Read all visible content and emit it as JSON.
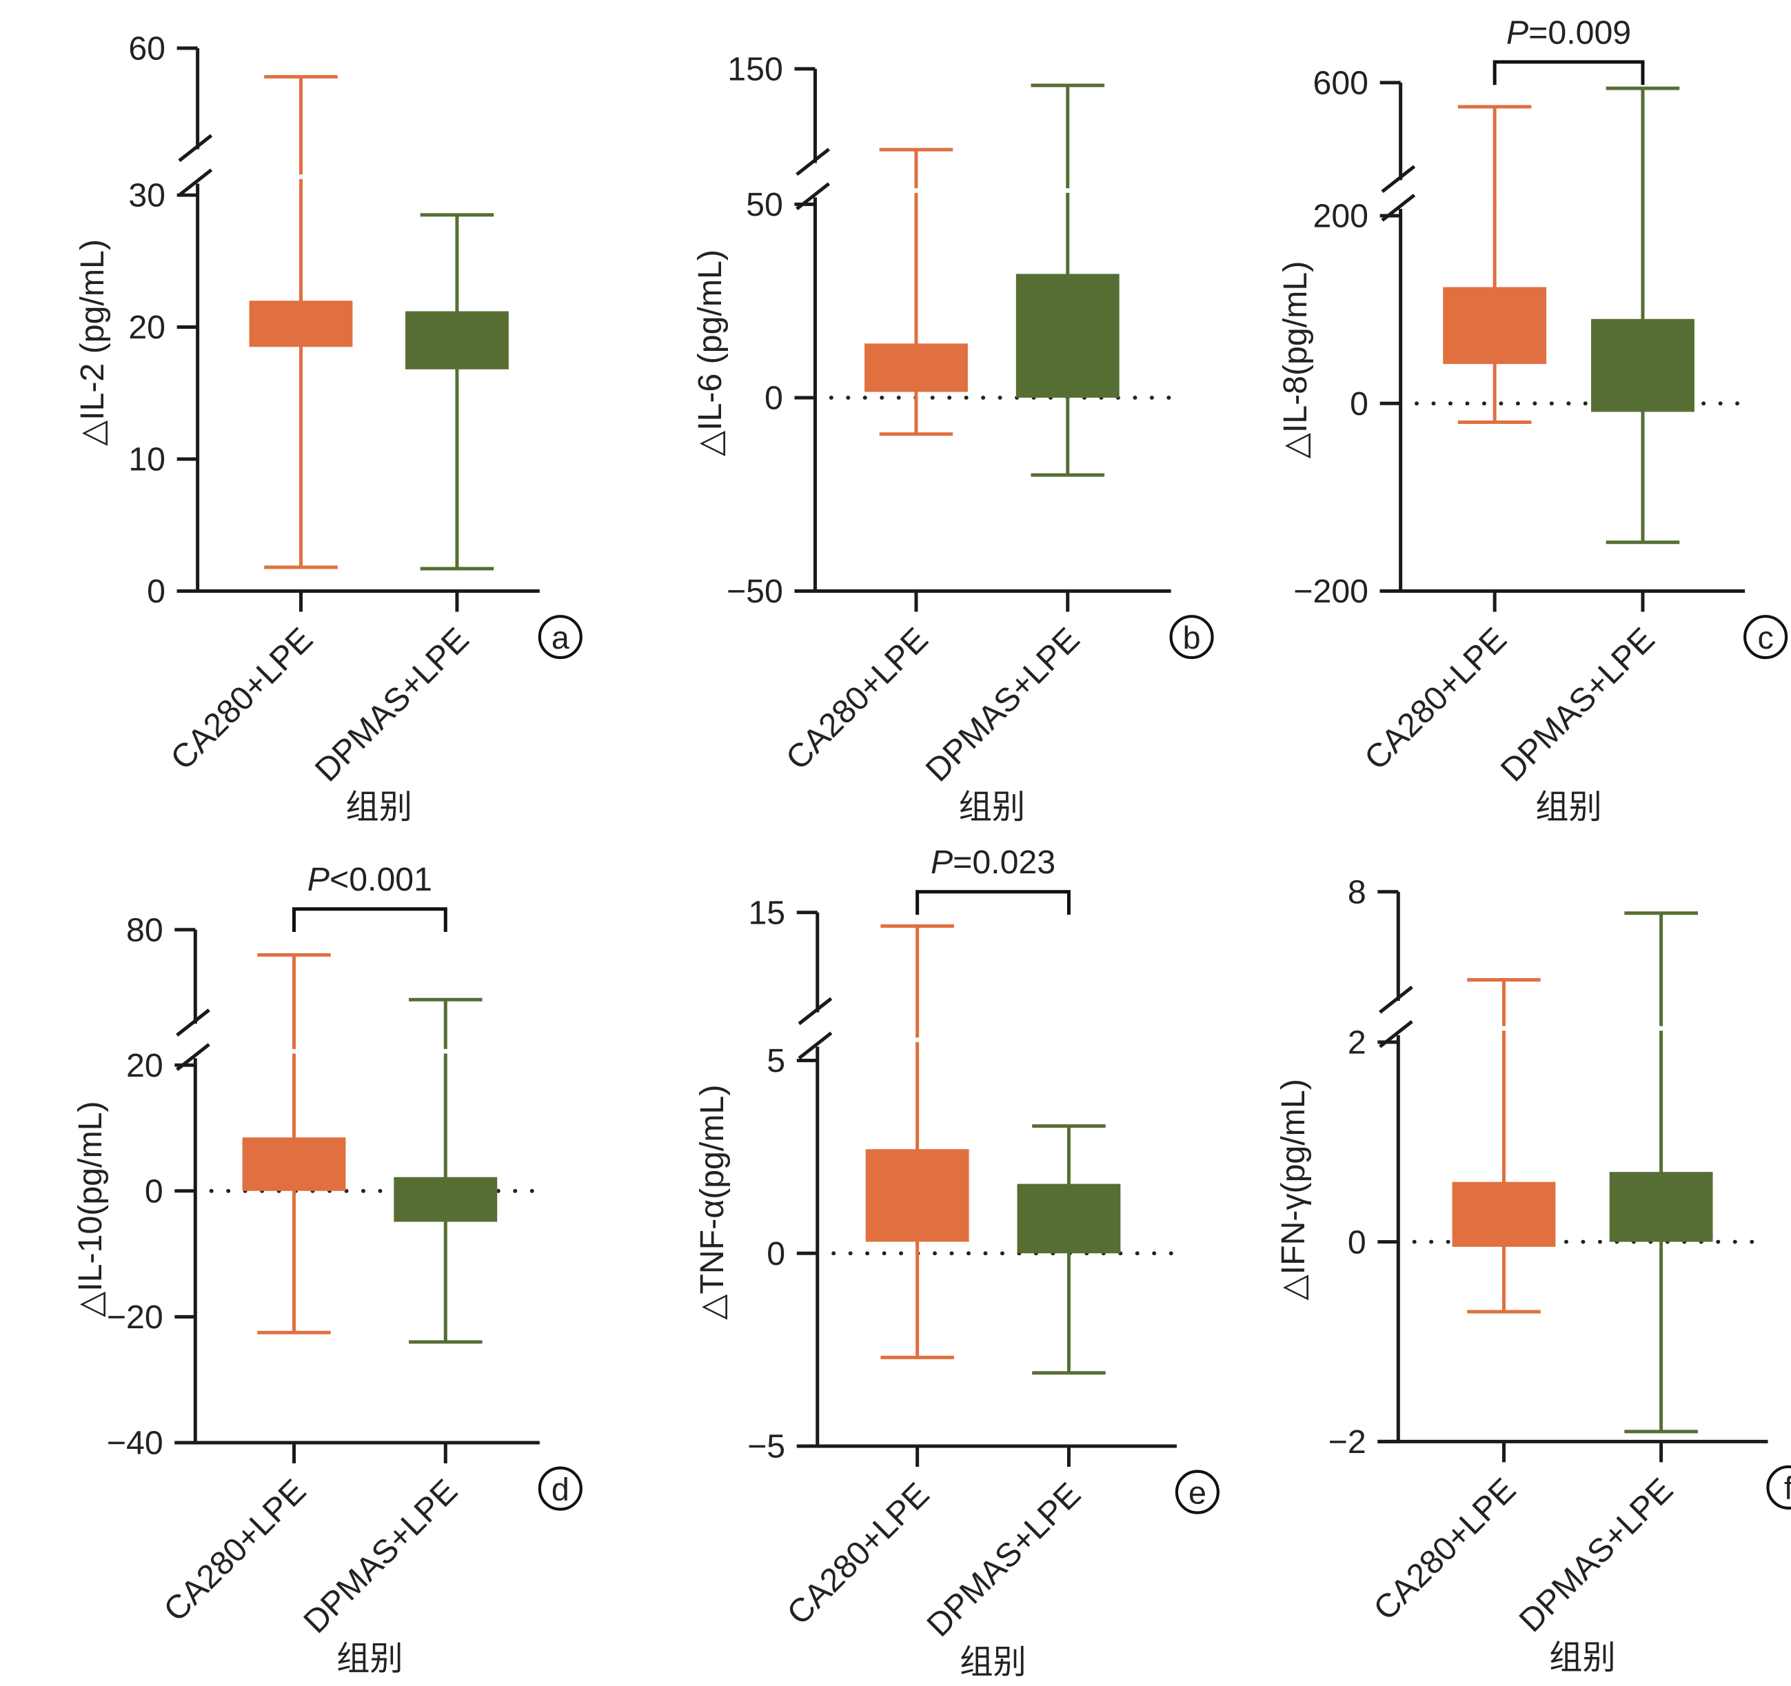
{
  "colors": {
    "CA280+LPE": "#E07040",
    "DPMAS+LPE": "#566E33",
    "axis": "#1a1a1a"
  },
  "chart_data": [
    {
      "panel": "a",
      "type": "box",
      "ylabel": "△IL-2 (pg/mL)",
      "xlabel": "组别",
      "categories": [
        "CA280+LPE",
        "DPMAS+LPE"
      ],
      "yticks": [
        0,
        10,
        20,
        30,
        60
      ],
      "axis_break": true,
      "ylim": [
        0,
        60
      ],
      "zero_line": false,
      "p_label": "",
      "series": [
        {
          "category": "CA280+LPE",
          "min": 1.8,
          "q1": 18.5,
          "q3": 22,
          "max": 54
        },
        {
          "category": "DPMAS+LPE",
          "min": 1.7,
          "q1": 16.8,
          "q3": 21.2,
          "max": 28.5
        }
      ]
    },
    {
      "panel": "b",
      "type": "box",
      "ylabel": "△IL-6 (pg/mL)",
      "xlabel": "组别",
      "categories": [
        "CA280+LPE",
        "DPMAS+LPE"
      ],
      "yticks": [
        -50,
        0,
        50,
        150
      ],
      "axis_break": true,
      "ylim": [
        -50,
        150
      ],
      "zero_line": true,
      "p_label": "",
      "series": [
        {
          "category": "CA280+LPE",
          "min": -9.4,
          "q1": 1.5,
          "q3": 14,
          "max": 106
        },
        {
          "category": "DPMAS+LPE",
          "min": -20,
          "q1": 0,
          "q3": 32,
          "max": 141
        }
      ]
    },
    {
      "panel": "c",
      "type": "box",
      "ylabel": "△IL-8(pg/mL)",
      "xlabel": "组别",
      "categories": [
        "CA280+LPE",
        "DPMAS+LPE"
      ],
      "yticks": [
        -200,
        0,
        200,
        600
      ],
      "axis_break": true,
      "ylim": [
        -200,
        600
      ],
      "zero_line": true,
      "p_label": "=0.009",
      "series": [
        {
          "category": "CA280+LPE",
          "min": -20,
          "q1": 42,
          "q3": 124,
          "max": 524
        },
        {
          "category": "DPMAS+LPE",
          "min": -148,
          "q1": -9,
          "q3": 90,
          "max": 582
        }
      ]
    },
    {
      "panel": "d",
      "type": "box",
      "ylabel": "△IL-10(pg/mL)",
      "xlabel": "组别",
      "categories": [
        "CA280+LPE",
        "DPMAS+LPE"
      ],
      "yticks": [
        -40,
        -20,
        0,
        20,
        80
      ],
      "axis_break": true,
      "ylim": [
        -40,
        80
      ],
      "zero_line": true,
      "p_label": "<0.001",
      "series": [
        {
          "category": "CA280+LPE",
          "min": -22.5,
          "q1": 0,
          "q3": 8.5,
          "max": 69
        },
        {
          "category": "DPMAS+LPE",
          "min": -24,
          "q1": -4.9,
          "q3": 2.2,
          "max": 49.5
        }
      ]
    },
    {
      "panel": "e",
      "type": "box",
      "ylabel": "△TNF-α(pg/mL)",
      "xlabel": "组别",
      "categories": [
        "CA280+LPE",
        "DPMAS+LPE"
      ],
      "yticks": [
        -5,
        0,
        5,
        15
      ],
      "axis_break": true,
      "ylim": [
        -5,
        15
      ],
      "zero_line": true,
      "p_label": "=0.023",
      "series": [
        {
          "category": "CA280+LPE",
          "min": -2.7,
          "q1": 0.3,
          "q3": 2.7,
          "max": 14.3
        },
        {
          "category": "DPMAS+LPE",
          "min": -3.1,
          "q1": 0,
          "q3": 1.8,
          "max": 3.3
        }
      ]
    },
    {
      "panel": "f",
      "type": "box",
      "ylabel": "△IFN-γ(pg/mL)",
      "xlabel": "组别",
      "categories": [
        "CA280+LPE",
        "DPMAS+LPE"
      ],
      "yticks": [
        -2,
        0,
        2,
        8
      ],
      "axis_break": true,
      "ylim": [
        -2,
        8
      ],
      "zero_line": true,
      "p_label": "",
      "series": [
        {
          "category": "CA280+LPE",
          "min": -0.7,
          "q1": -0.05,
          "q3": 0.6,
          "max": 4.7
        },
        {
          "category": "DPMAS+LPE",
          "min": -1.9,
          "q1": 0,
          "q3": 0.7,
          "max": 7.2
        }
      ]
    }
  ]
}
